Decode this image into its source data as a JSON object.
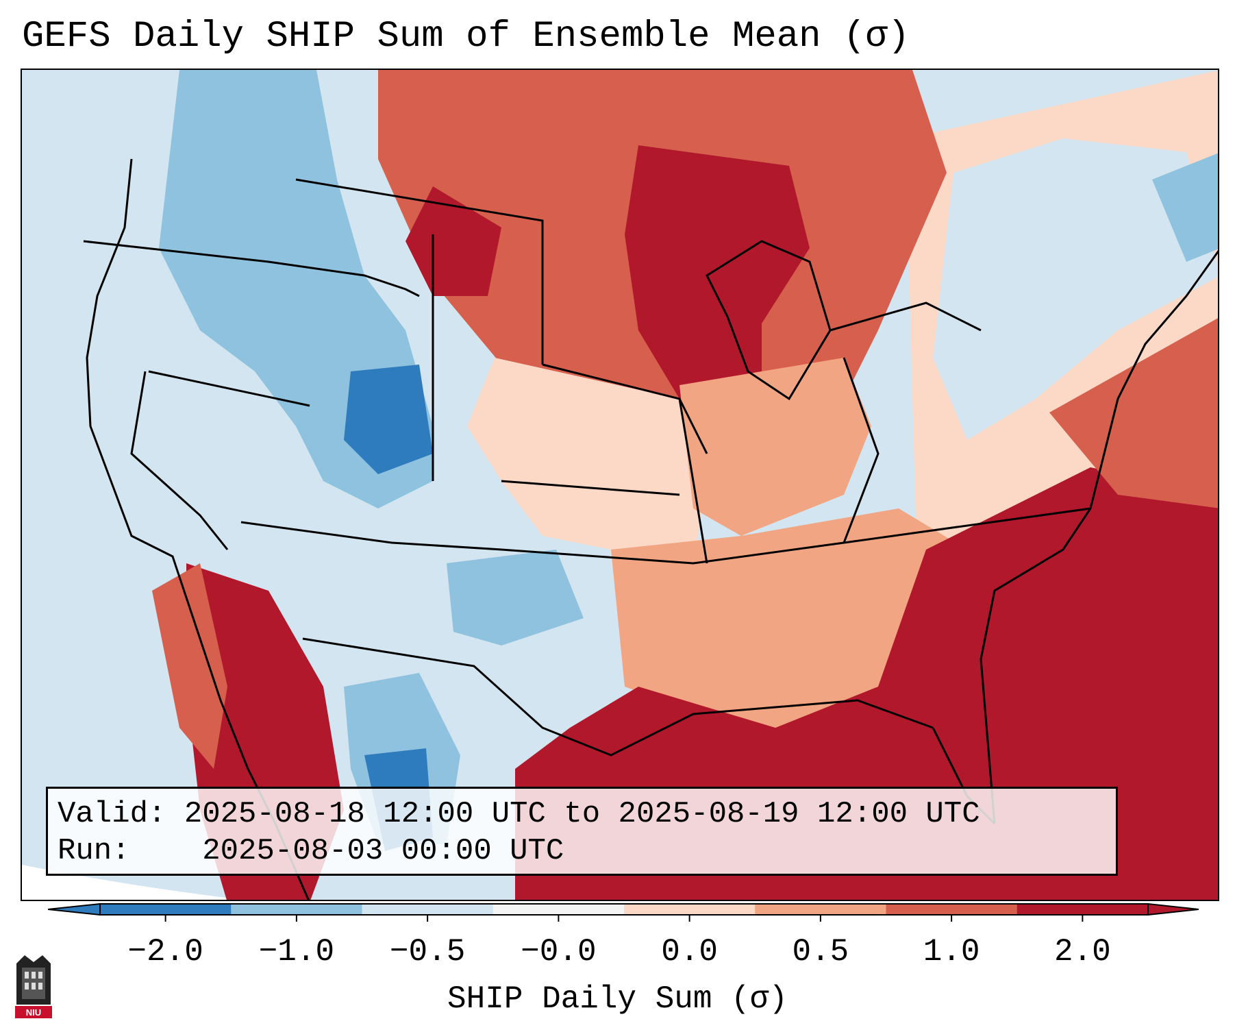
{
  "title": "GEFS Daily SHIP Sum of Ensemble Mean (σ)",
  "info": {
    "valid_label": "Valid:",
    "valid_value": "2025-08-18 12:00 UTC to 2025-08-19 12:00 UTC",
    "run_label": "Run:",
    "run_value": "2025-08-03 00:00 UTC"
  },
  "colorbar": {
    "label": "SHIP Daily Sum (σ)",
    "ticks": [
      "−2.0",
      "−1.0",
      "−0.5",
      "−0.0",
      "0.0",
      "0.5",
      "1.0",
      "2.0"
    ],
    "colors": [
      "#2e7bbd",
      "#8fc2de",
      "#d2e5f0",
      "#f4f4f4",
      "#fcd9c7",
      "#f2a582",
      "#d6604d",
      "#b2182b"
    ]
  },
  "legend_colors": {
    "ocean_neutral": "#d2e5f0",
    "neg_strong": "#2e7bbd",
    "neg_mid": "#8fc2de",
    "neg_light": "#d2e5f0",
    "pos_light": "#fcd9c7",
    "pos_mid": "#f2a582",
    "pos_strong": "#d6604d",
    "pos_max": "#b2182b"
  },
  "logo": {
    "text": "NIU"
  }
}
